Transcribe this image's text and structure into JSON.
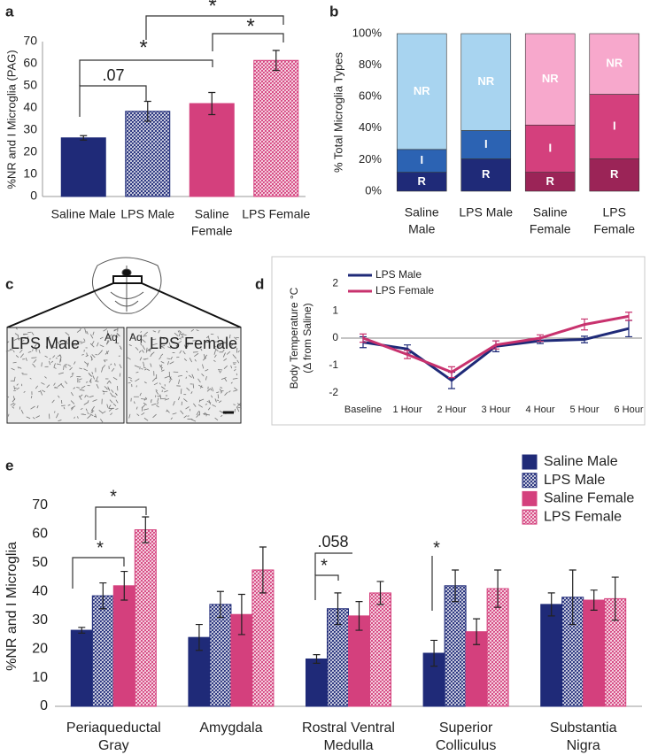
{
  "chart_data": [
    {
      "panel": "a",
      "type": "bar",
      "ylabel": "%NR and I Microglia (PAG)",
      "categories": [
        [
          "Saline Male"
        ],
        [
          "LPS Male"
        ],
        [
          "Saline",
          "Female"
        ],
        [
          "LPS Female"
        ]
      ],
      "values": [
        26.5,
        38.5,
        42,
        61.5
      ],
      "errors": [
        1,
        4.5,
        5,
        4.5
      ],
      "colors": [
        "#1f2a78",
        "#1f2a78",
        "#d4407d",
        "#d4407d"
      ],
      "patterns": [
        "solid",
        "hatch",
        "solid",
        "hatch"
      ],
      "ylim": [
        0,
        70
      ],
      "yticks": [
        0,
        10,
        20,
        30,
        40,
        50,
        60,
        70
      ],
      "annotations": [
        ".07",
        "*",
        "*",
        "*"
      ]
    },
    {
      "panel": "b",
      "type": "stacked_bar",
      "ylabel": "% Total Microglia Types",
      "categories": [
        [
          "Saline",
          "Male"
        ],
        [
          "LPS Male"
        ],
        [
          "Saline",
          "Female"
        ],
        [
          "LPS",
          "Female"
        ]
      ],
      "series": [
        {
          "name": "R",
          "colors": [
            "#1f2a78",
            "#1f2a78",
            "#9b2457",
            "#9b2457"
          ],
          "values": [
            12,
            20.5,
            12,
            20.5
          ]
        },
        {
          "name": "I",
          "colors": [
            "#2c63b3",
            "#2c63b3",
            "#d4407d",
            "#d4407d"
          ],
          "values": [
            14.5,
            18,
            30,
            41
          ]
        },
        {
          "name": "NR",
          "colors": [
            "#a8d4f0",
            "#a8d4f0",
            "#f7a8cc",
            "#f7a8cc"
          ],
          "values": [
            73.5,
            61.5,
            58,
            38.5
          ]
        }
      ],
      "ylim": [
        0,
        100
      ],
      "yticks": [
        {
          "value": 0,
          "label": "0%"
        },
        {
          "value": 20,
          "label": "20%"
        },
        {
          "value": 40,
          "label": "40%"
        },
        {
          "value": 60,
          "label": "60%"
        },
        {
          "value": 80,
          "label": "80%"
        },
        {
          "value": 100,
          "label": "100%"
        }
      ]
    },
    {
      "panel": "d",
      "type": "line",
      "ylabel": [
        "Body Temperature °C",
        "(Δ from Saline)"
      ],
      "categories": [
        "Baseline",
        "1 Hour",
        "2 Hour",
        "3 Hour",
        "4 Hour",
        "5 Hour",
        "6 Hour"
      ],
      "series": [
        {
          "name": "LPS Male",
          "color": "#1f2a78",
          "values": [
            -0.15,
            -0.4,
            -1.55,
            -0.3,
            -0.1,
            -0.05,
            0.35
          ],
          "errors": [
            0.2,
            0.15,
            0.3,
            0.2,
            0.1,
            0.12,
            0.3
          ]
        },
        {
          "name": "LPS Female",
          "color": "#c8326e",
          "values": [
            0,
            -0.6,
            -1.25,
            -0.25,
            0,
            0.5,
            0.8
          ],
          "errors": [
            0.15,
            0.15,
            0.2,
            0.15,
            0.12,
            0.2,
            0.15
          ]
        }
      ],
      "ylim": [
        -2.5,
        2.5
      ],
      "yticks": [
        -2,
        -1,
        0,
        1,
        2
      ],
      "legend": "top-left"
    },
    {
      "panel": "e",
      "type": "grouped_bar",
      "ylabel": "%NR and I Microglia",
      "categories": [
        [
          "Periaqueductal",
          "Gray"
        ],
        [
          "Amygdala"
        ],
        [
          "Rostral Ventral",
          "Medulla"
        ],
        [
          "Superior",
          "Colliculus"
        ],
        [
          "Substantia",
          "Nigra"
        ]
      ],
      "series": [
        {
          "name": "Saline Male",
          "color": "#1f2a78",
          "pattern": "solid",
          "values": [
            26.5,
            24,
            16.5,
            18.5,
            35.5
          ],
          "errors": [
            1,
            4.5,
            1.5,
            4.5,
            4
          ]
        },
        {
          "name": "LPS Male",
          "color": "#1f2a78",
          "pattern": "hatch",
          "values": [
            38.5,
            35.5,
            34,
            42,
            38
          ],
          "errors": [
            4.5,
            4.5,
            5.5,
            5.5,
            9.5
          ]
        },
        {
          "name": "Saline Female",
          "color": "#d4407d",
          "pattern": "solid",
          "values": [
            42,
            32,
            31.5,
            26,
            37
          ],
          "errors": [
            5,
            7,
            5,
            4.5,
            3.5
          ]
        },
        {
          "name": "LPS Female",
          "color": "#d4407d",
          "pattern": "hatch",
          "values": [
            61.5,
            47.5,
            39.5,
            41,
            37.5
          ],
          "errors": [
            4.5,
            8,
            4,
            6.5,
            7.5
          ]
        }
      ],
      "ylim": [
        0,
        70
      ],
      "yticks": [
        0,
        10,
        20,
        30,
        40,
        50,
        60,
        70
      ],
      "legend": "top-right",
      "annotations": [
        "*",
        "*",
        "*",
        ".058",
        "*"
      ]
    }
  ],
  "image_panel": {
    "panel": "c",
    "labels": [
      "LPS Male",
      "Aq",
      "Aq",
      "LPS Female"
    ]
  }
}
